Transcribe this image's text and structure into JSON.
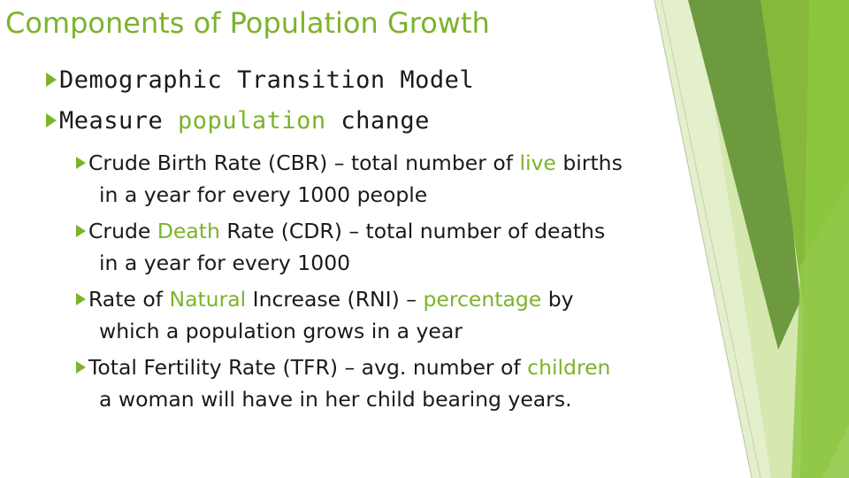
{
  "slide": {
    "title": "Components of Population Growth",
    "accent_color": "#7cb32b",
    "bullet_icon": "right-triangle-arrow-icon",
    "level1": [
      {
        "text": "Demographic Transition Model"
      },
      {
        "text_a": "Measure ",
        "text_hl": "population",
        "text_b": " change"
      }
    ],
    "cbr": {
      "a": "Crude Birth Rate (CBR) – total number of ",
      "hl": "live",
      "b": " births",
      "line2": "in a year for every 1000 people"
    },
    "cdr": {
      "a": "Crude ",
      "hl": "Death",
      "b": " Rate (CDR) – total number of deaths",
      "line2": "in a year for every 1000"
    },
    "rni": {
      "a": "Rate of ",
      "hl1": "Natural",
      "b": " Increase (RNI) – ",
      "hl2": "percentage",
      "c": " by",
      "line2": "which a population grows in a year"
    },
    "tfr": {
      "a": "Total Fertility Rate (TFR) – avg. number of ",
      "hl": "children",
      "line2": "a woman will have in her child bearing years."
    }
  }
}
